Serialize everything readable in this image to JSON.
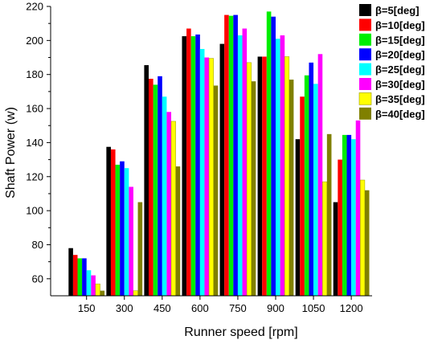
{
  "chart_data": {
    "type": "bar",
    "xlabel": "Runner speed [rpm]",
    "ylabel": "Shaft Power (w)",
    "categories": [
      "150",
      "300",
      "450",
      "600",
      "750",
      "900",
      "1050",
      "1200"
    ],
    "ylim": [
      50,
      220
    ],
    "yticks": [
      60,
      80,
      100,
      120,
      140,
      160,
      180,
      200,
      220
    ],
    "grid": false,
    "legend_position": "top-right",
    "series": [
      {
        "name": "β=5[deg]",
        "color": "#000000",
        "values": [
          78,
          137.5,
          185.5,
          202.5,
          198,
          190.5,
          142,
          105
        ]
      },
      {
        "name": "β=10[deg]",
        "color": "#ff0000",
        "values": [
          74,
          136,
          177.5,
          207,
          215,
          190.5,
          167,
          130
        ]
      },
      {
        "name": "β=15[deg]",
        "color": "#00ee00",
        "values": [
          72,
          127,
          174,
          202.5,
          214.5,
          217,
          179.5,
          144.5
        ]
      },
      {
        "name": "β=20[deg]",
        "color": "#0000ff",
        "values": [
          72,
          129,
          179,
          203.5,
          215,
          214,
          187,
          144.5
        ]
      },
      {
        "name": "β=25[deg]",
        "color": "#00ffff",
        "values": [
          65,
          125,
          167,
          195,
          203,
          201,
          174.5,
          142
        ]
      },
      {
        "name": "β=30[deg]",
        "color": "#ff00ff",
        "values": [
          62,
          114,
          158,
          190,
          207,
          203,
          192,
          153
        ]
      },
      {
        "name": "β=35[deg]",
        "color": "#ffff00",
        "values": [
          57,
          53,
          152.5,
          189.5,
          187,
          190.5,
          117,
          118
        ]
      },
      {
        "name": "β=40[deg]",
        "color": "#808000",
        "values": [
          53,
          105,
          126,
          173.5,
          176,
          177,
          145,
          112
        ]
      }
    ]
  }
}
